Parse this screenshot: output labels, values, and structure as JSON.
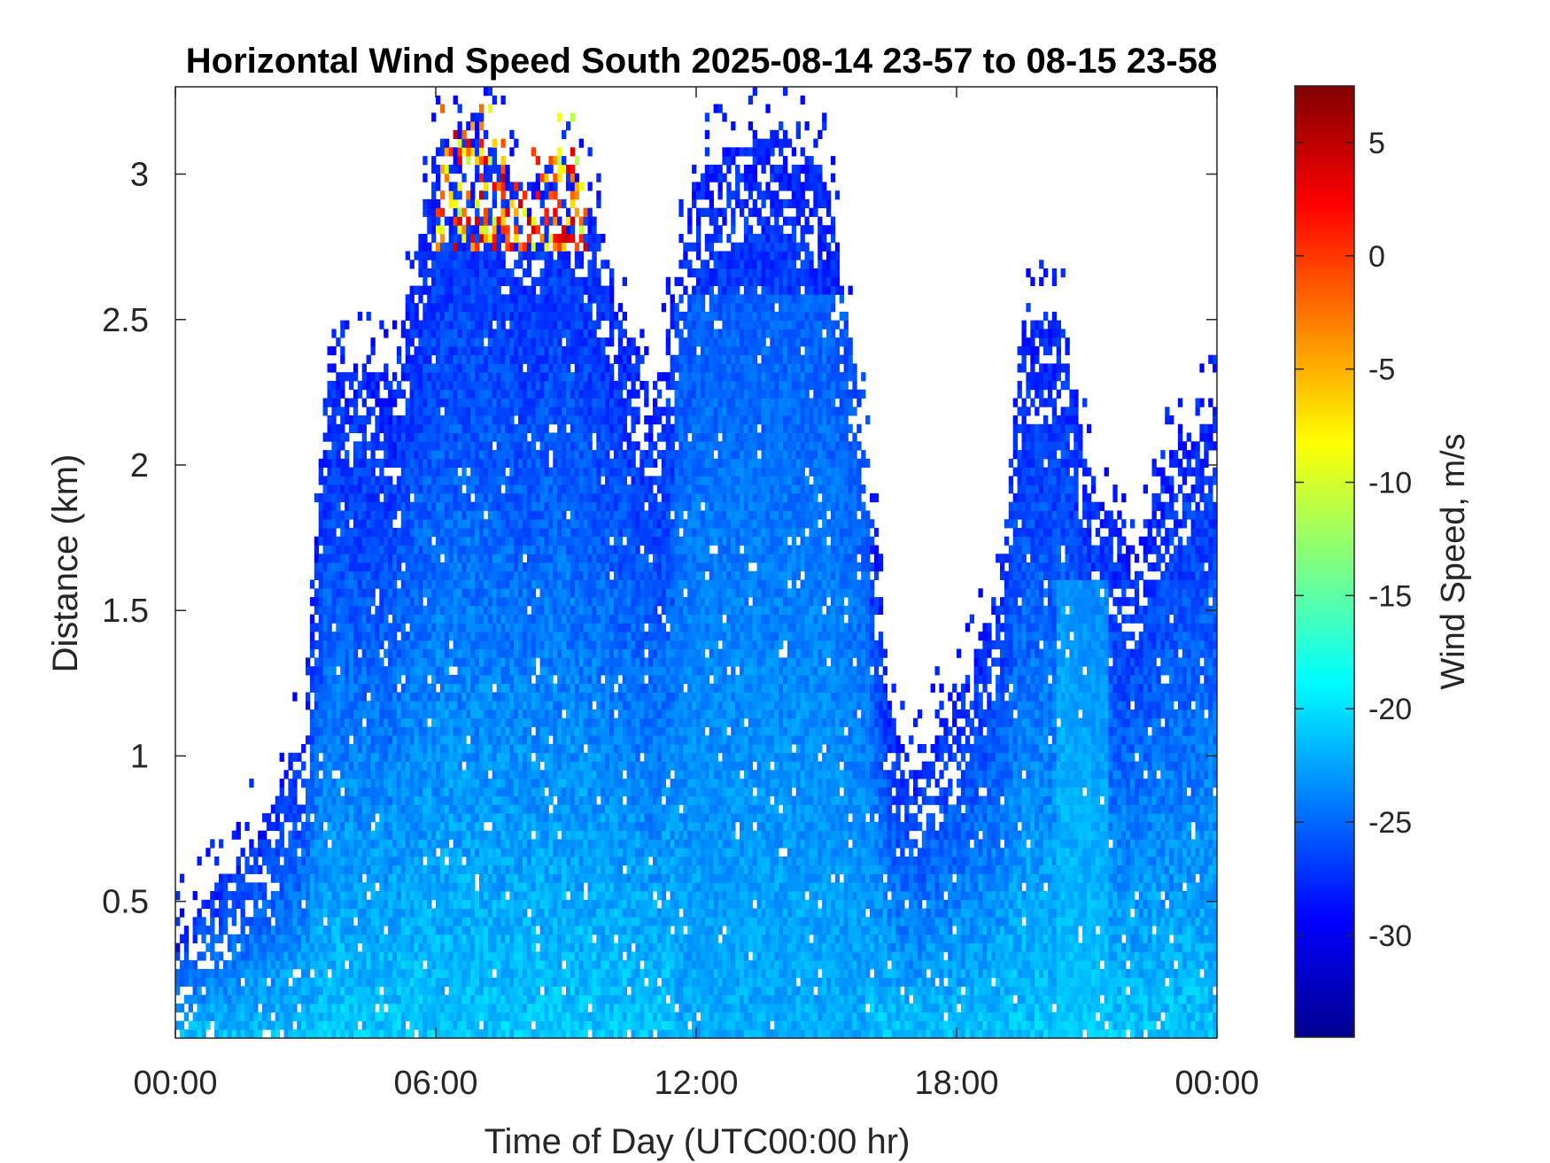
{
  "chart_data": {
    "type": "heatmap",
    "title": "Horizontal Wind Speed South 2025-08-14 23-57 to 08-15 23-58",
    "xlabel": "Time of Day (UTC00:00 hr)",
    "ylabel": "Distance (km)",
    "xlim": [
      0,
      24
    ],
    "ylim": [
      0.03,
      3.3
    ],
    "x_ticks": [
      {
        "value": 0,
        "label": "00:00"
      },
      {
        "value": 6,
        "label": "06:00"
      },
      {
        "value": 12,
        "label": "12:00"
      },
      {
        "value": 18,
        "label": "18:00"
      },
      {
        "value": 24,
        "label": "00:00"
      }
    ],
    "y_ticks": [
      {
        "value": 0.5,
        "label": "0.5"
      },
      {
        "value": 1,
        "label": "1"
      },
      {
        "value": 1.5,
        "label": "1.5"
      },
      {
        "value": 2,
        "label": "2"
      },
      {
        "value": 2.5,
        "label": "2.5"
      },
      {
        "value": 3,
        "label": "3"
      }
    ],
    "colorbar": {
      "label": "Wind Speed, m/s",
      "colormap": "jet",
      "range": [
        -34.5,
        7.5
      ],
      "ticks": [
        {
          "value": 5,
          "label": "5"
        },
        {
          "value": 0,
          "label": "0"
        },
        {
          "value": -5,
          "label": "-5"
        },
        {
          "value": -10,
          "label": "-10"
        },
        {
          "value": -15,
          "label": "-15"
        },
        {
          "value": -20,
          "label": "-20"
        },
        {
          "value": -25,
          "label": "-25"
        },
        {
          "value": -30,
          "label": "-30"
        }
      ]
    },
    "data_coverage_top_km": [
      {
        "t": 0,
        "h": 0.35
      },
      {
        "t": 1,
        "h": 0.6
      },
      {
        "t": 2,
        "h": 0.75
      },
      {
        "t": 3,
        "h": 1.1
      },
      {
        "t": 3.5,
        "h": 2.4
      },
      {
        "t": 5,
        "h": 2.3
      },
      {
        "t": 6,
        "h": 3.1
      },
      {
        "t": 7,
        "h": 3.2
      },
      {
        "t": 8,
        "h": 2.95
      },
      {
        "t": 9,
        "h": 3.1
      },
      {
        "t": 10,
        "h": 2.7
      },
      {
        "t": 11,
        "h": 2.2
      },
      {
        "t": 12,
        "h": 3.0
      },
      {
        "t": 13,
        "h": 3.1
      },
      {
        "t": 14,
        "h": 3.15
      },
      {
        "t": 15,
        "h": 3.0
      },
      {
        "t": 16,
        "h": 2.0
      },
      {
        "t": 16.5,
        "h": 1.1
      },
      {
        "t": 17,
        "h": 0.97
      },
      {
        "t": 18,
        "h": 1.2
      },
      {
        "t": 19,
        "h": 1.6
      },
      {
        "t": 19.5,
        "h": 2.5
      },
      {
        "t": 20.5,
        "h": 2.5
      },
      {
        "t": 21,
        "h": 2.0
      },
      {
        "t": 22,
        "h": 1.7
      },
      {
        "t": 23,
        "h": 2.05
      },
      {
        "t": 24,
        "h": 2.2
      }
    ],
    "high_speed_region": {
      "time_range": [
        6,
        9.5
      ],
      "distance_range_km": [
        2.75,
        3.25
      ],
      "value_range": [
        -5,
        5
      ]
    }
  }
}
